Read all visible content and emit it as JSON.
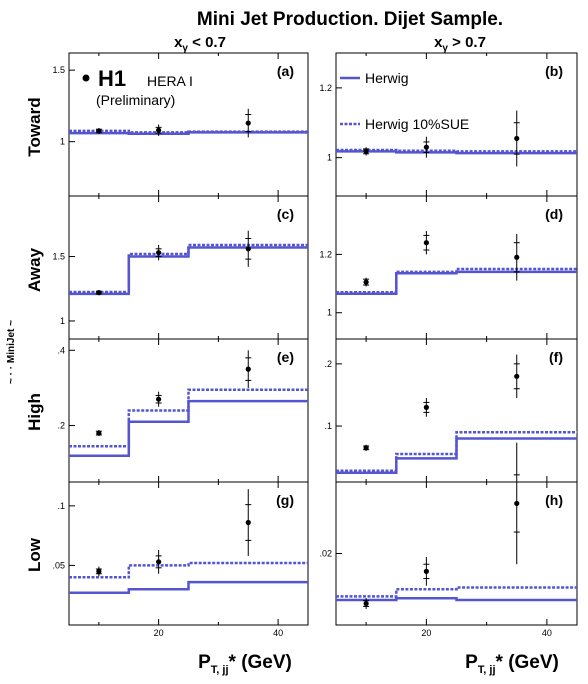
{
  "figure": {
    "title": "Mini Jet Production.  Dijet Sample.",
    "col_titles": [
      "xγ < 0.7",
      "xγ > 0.7"
    ],
    "col_title_parts": [
      {
        "main": "x",
        "sub": "γ",
        "rest": " < 0.7"
      },
      {
        "main": "x",
        "sub": "γ",
        "rest": " > 0.7"
      }
    ],
    "row_labels": [
      "Toward",
      "Away",
      "High",
      "Low"
    ],
    "ylabel_fragment": "~ · · MiniJet  ~",
    "xlabel": {
      "main": "P",
      "sub": "T, jj",
      "rest": "* (GeV)"
    },
    "experiment": {
      "name": "H1",
      "dataset": "HERA I",
      "note": "(Preliminary)"
    },
    "legend": [
      {
        "label": "Herwig",
        "style": "solid"
      },
      {
        "label": "Herwig 10%SUE",
        "style": "dashed"
      }
    ],
    "colors": {
      "model": "#5555d0",
      "data": "#000000"
    }
  },
  "chart_data": [
    {
      "type": "line",
      "panel": "a",
      "row": "Toward",
      "column": "xγ < 0.7",
      "xlim": [
        5,
        45
      ],
      "ylim": [
        0.62,
        1.62
      ],
      "yticks": [
        1,
        1.5
      ],
      "bin_edges": [
        5,
        15,
        25,
        45
      ],
      "data_points": [
        {
          "x": 10,
          "y": 1.075,
          "stat": 0.012,
          "tot": 0.02
        },
        {
          "x": 20,
          "y": 1.08,
          "stat": 0.02,
          "tot": 0.04
        },
        {
          "x": 35,
          "y": 1.13,
          "stat": 0.06,
          "tot": 0.1
        }
      ],
      "series": [
        {
          "name": "Herwig",
          "values": [
            1.06,
            1.055,
            1.065
          ]
        },
        {
          "name": "Herwig 10%SUE",
          "values": [
            1.075,
            1.065,
            1.07
          ]
        }
      ]
    },
    {
      "type": "line",
      "panel": "b",
      "row": "Toward",
      "column": "xγ > 0.7",
      "xlim": [
        5,
        45
      ],
      "ylim": [
        0.89,
        1.3
      ],
      "yticks": [
        1,
        1.2
      ],
      "bin_edges": [
        5,
        15,
        25,
        45
      ],
      "data_points": [
        {
          "x": 10,
          "y": 1.018,
          "stat": 0.007,
          "tot": 0.012
        },
        {
          "x": 20,
          "y": 1.03,
          "stat": 0.015,
          "tot": 0.03
        },
        {
          "x": 35,
          "y": 1.055,
          "stat": 0.045,
          "tot": 0.08
        }
      ],
      "series": [
        {
          "name": "Herwig",
          "values": [
            1.018,
            1.015,
            1.013
          ]
        },
        {
          "name": "Herwig 10%SUE",
          "values": [
            1.022,
            1.02,
            1.018
          ]
        }
      ]
    },
    {
      "type": "line",
      "panel": "c",
      "row": "Away",
      "column": "xγ < 0.7",
      "xlim": [
        5,
        45
      ],
      "ylim": [
        0.86,
        1.97
      ],
      "yticks": [
        1,
        1.5
      ],
      "bin_edges": [
        5,
        15,
        25,
        45
      ],
      "data_points": [
        {
          "x": 10,
          "y": 1.22,
          "stat": 0.01,
          "tot": 0.015
        },
        {
          "x": 20,
          "y": 1.53,
          "stat": 0.03,
          "tot": 0.06
        },
        {
          "x": 35,
          "y": 1.56,
          "stat": 0.08,
          "tot": 0.14
        }
      ],
      "series": [
        {
          "name": "Herwig",
          "values": [
            1.21,
            1.5,
            1.57
          ]
        },
        {
          "name": "Herwig 10%SUE",
          "values": [
            1.225,
            1.52,
            1.59
          ]
        }
      ]
    },
    {
      "type": "line",
      "panel": "d",
      "row": "Away",
      "column": "xγ > 0.7",
      "xlim": [
        5,
        45
      ],
      "ylim": [
        0.91,
        1.4
      ],
      "yticks": [
        1,
        1.2
      ],
      "bin_edges": [
        5,
        15,
        25,
        45
      ],
      "data_points": [
        {
          "x": 10,
          "y": 1.105,
          "stat": 0.01,
          "tot": 0.015
        },
        {
          "x": 20,
          "y": 1.24,
          "stat": 0.025,
          "tot": 0.04
        },
        {
          "x": 35,
          "y": 1.19,
          "stat": 0.05,
          "tot": 0.08
        }
      ],
      "series": [
        {
          "name": "Herwig",
          "values": [
            1.065,
            1.135,
            1.14
          ]
        },
        {
          "name": "Herwig 10%SUE",
          "values": [
            1.07,
            1.14,
            1.15
          ]
        }
      ]
    },
    {
      "type": "line",
      "panel": "e",
      "row": "High",
      "column": "xγ < 0.7",
      "xlim": [
        5,
        45
      ],
      "ylim": [
        0.05,
        0.43
      ],
      "yticks": [
        0.2,
        0.4
      ],
      "bin_edges": [
        5,
        15,
        25,
        45
      ],
      "data_points": [
        {
          "x": 10,
          "y": 0.18,
          "stat": 0.005,
          "tot": 0.008
        },
        {
          "x": 20,
          "y": 0.27,
          "stat": 0.01,
          "tot": 0.02
        },
        {
          "x": 35,
          "y": 0.35,
          "stat": 0.03,
          "tot": 0.05
        }
      ],
      "series": [
        {
          "name": "Herwig",
          "values": [
            0.12,
            0.21,
            0.265
          ]
        },
        {
          "name": "Herwig 10%SUE",
          "values": [
            0.145,
            0.24,
            0.295
          ]
        }
      ]
    },
    {
      "type": "line",
      "panel": "f",
      "row": "High",
      "column": "xγ > 0.7",
      "xlim": [
        5,
        45
      ],
      "ylim": [
        0.01,
        0.24
      ],
      "yticks": [
        0.1,
        0.2
      ],
      "bin_edges": [
        5,
        15,
        25,
        45
      ],
      "data_points": [
        {
          "x": 10,
          "y": 0.065,
          "stat": 0.003,
          "tot": 0.005
        },
        {
          "x": 20,
          "y": 0.13,
          "stat": 0.008,
          "tot": 0.015
        },
        {
          "x": 35,
          "y": 0.18,
          "stat": 0.02,
          "tot": 0.035
        }
      ],
      "series": [
        {
          "name": "Herwig",
          "values": [
            0.025,
            0.048,
            0.08
          ]
        },
        {
          "name": "Herwig 10%SUE",
          "values": [
            0.028,
            0.055,
            0.09
          ]
        }
      ]
    },
    {
      "type": "line",
      "panel": "g",
      "row": "Low",
      "column": "xγ < 0.7",
      "xlim": [
        5,
        45
      ],
      "ylim": [
        0.0,
        0.12
      ],
      "yticks": [
        0.05,
        0.1
      ],
      "bin_edges": [
        5,
        15,
        25,
        45
      ],
      "data_points": [
        {
          "x": 10,
          "y": 0.045,
          "stat": 0.002,
          "tot": 0.004
        },
        {
          "x": 20,
          "y": 0.053,
          "stat": 0.005,
          "tot": 0.01
        },
        {
          "x": 35,
          "y": 0.086,
          "stat": 0.015,
          "tot": 0.028
        }
      ],
      "series": [
        {
          "name": "Herwig",
          "values": [
            0.027,
            0.03,
            0.036
          ]
        },
        {
          "name": "Herwig 10%SUE",
          "values": [
            0.04,
            0.05,
            0.052
          ]
        }
      ]
    },
    {
      "type": "line",
      "panel": "h",
      "row": "Low",
      "column": "xγ > 0.7",
      "xlim": [
        5,
        45
      ],
      "ylim": [
        0.0,
        0.04
      ],
      "yticks": [
        0.02
      ],
      "bin_edges": [
        5,
        15,
        25,
        45
      ],
      "data_points": [
        {
          "x": 10,
          "y": 0.006,
          "stat": 0.0008,
          "tot": 0.0015
        },
        {
          "x": 20,
          "y": 0.015,
          "stat": 0.002,
          "tot": 0.004
        },
        {
          "x": 35,
          "y": 0.034,
          "stat": 0.008,
          "tot": 0.017
        }
      ],
      "series": [
        {
          "name": "Herwig",
          "values": [
            0.007,
            0.0075,
            0.007
          ]
        },
        {
          "name": "Herwig 10%SUE",
          "values": [
            0.008,
            0.01,
            0.0105
          ]
        }
      ]
    }
  ]
}
